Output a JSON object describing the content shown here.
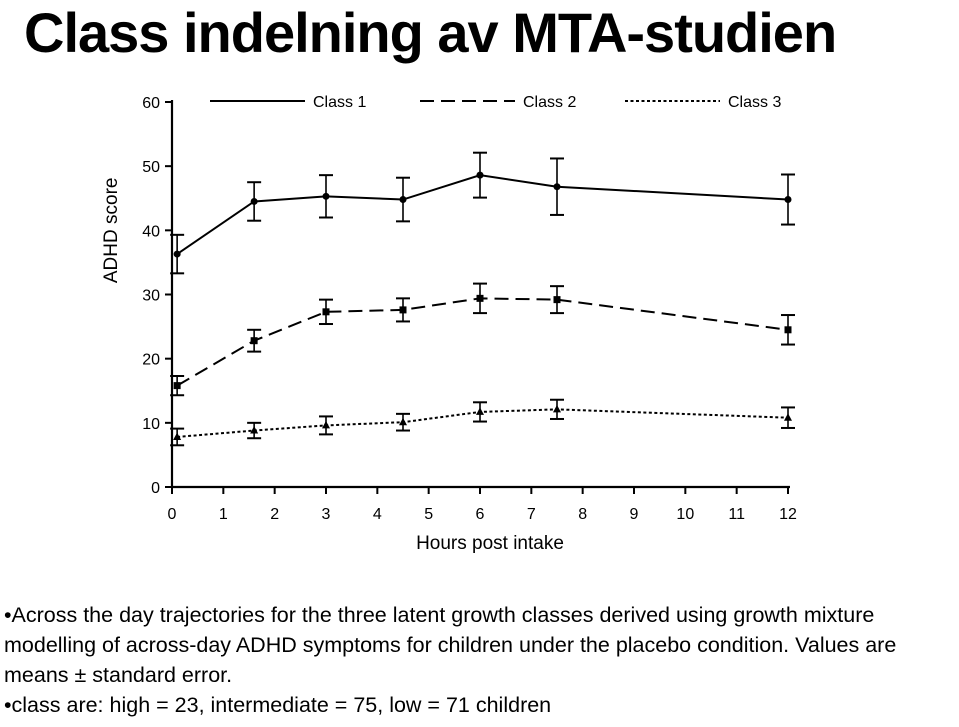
{
  "title": "Class indelning av MTA-studien",
  "chart_data": {
    "type": "line",
    "xlabel": "Hours post intake",
    "ylabel": "ADHD score",
    "xlim": [
      0,
      12
    ],
    "ylim": [
      0,
      60
    ],
    "xticks": [
      "0",
      "1",
      "2",
      "3",
      "4",
      "5",
      "6",
      "7",
      "8",
      "9",
      "10",
      "11",
      "12"
    ],
    "yticks": [
      "0",
      "10",
      "20",
      "30",
      "40",
      "50",
      "60"
    ],
    "x": [
      0.1,
      1.6,
      3,
      4.5,
      6,
      7.5,
      12
    ],
    "legend_position": "top",
    "series": [
      {
        "name": "Class 1",
        "style": "solid",
        "marker": "circle",
        "values": [
          36.3,
          44.5,
          45.3,
          44.8,
          48.6,
          46.8,
          44.8
        ],
        "errors": [
          3.0,
          3.0,
          3.3,
          3.4,
          3.5,
          4.4,
          3.9
        ]
      },
      {
        "name": "Class 2",
        "style": "dashed",
        "marker": "square",
        "values": [
          15.8,
          22.8,
          27.3,
          27.6,
          29.4,
          29.2,
          24.5
        ],
        "errors": [
          1.5,
          1.7,
          1.9,
          1.8,
          2.3,
          2.1,
          2.3
        ]
      },
      {
        "name": "Class 3",
        "style": "dotted",
        "marker": "triangle",
        "values": [
          7.8,
          8.8,
          9.6,
          10.1,
          11.7,
          12.1,
          10.8
        ],
        "errors": [
          1.3,
          1.2,
          1.4,
          1.3,
          1.5,
          1.5,
          1.6
        ]
      }
    ]
  },
  "caption": {
    "line1": "•Across the day trajectories for the three latent growth classes derived using growth mixture modelling of across-day ADHD symptoms for children under the placebo condition. Values are means ± standard error.",
    "line2": "•class are: high = 23, intermediate = 75, low = 71 children"
  }
}
